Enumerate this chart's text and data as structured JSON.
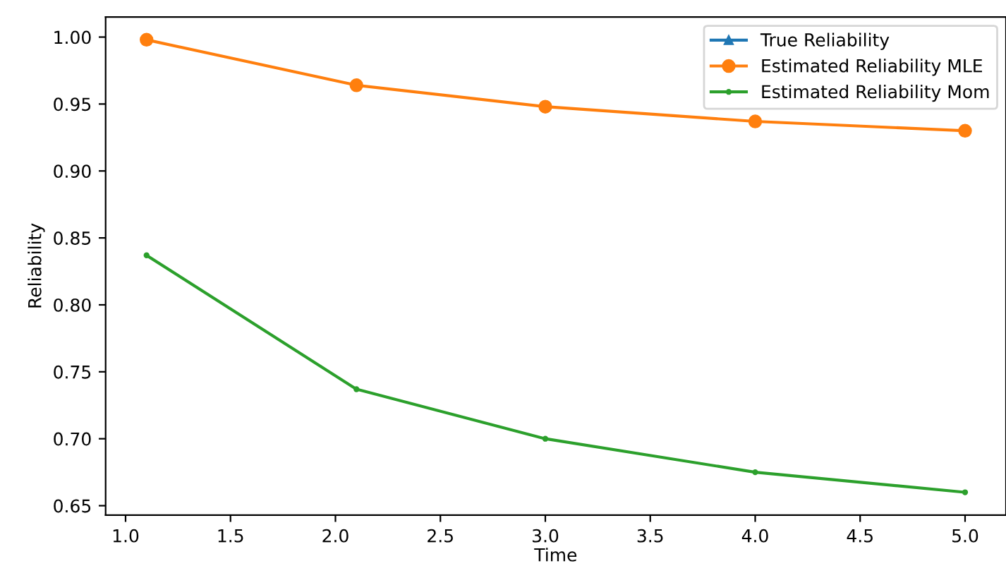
{
  "chart_data": {
    "type": "line",
    "xlabel": "Time",
    "ylabel": "Reliability",
    "x": [
      1.1,
      2.1,
      3.0,
      4.0,
      5.0
    ],
    "xlim": [
      0.905,
      5.195
    ],
    "xticks": [
      {
        "value": 1.0,
        "label": "1.0"
      },
      1.5,
      {
        "value": 2.0,
        "label": "2.0"
      },
      2.5,
      {
        "value": 3.0,
        "label": "3.0"
      },
      3.5,
      {
        "value": 4.0,
        "label": "4.0"
      },
      4.5,
      {
        "value": 5.0,
        "label": "5.0"
      }
    ],
    "ylim": [
      0.643,
      1.015
    ],
    "yticks": [
      0.65,
      {
        "value": 0.7,
        "label": "0.70"
      },
      0.75,
      {
        "value": 0.8,
        "label": "0.80"
      },
      0.85,
      {
        "value": 0.9,
        "label": "0.90"
      },
      0.95,
      {
        "value": 1.0,
        "label": "1.00"
      }
    ],
    "grid": false,
    "legend": "top right",
    "series": [
      {
        "name": "True Reliability",
        "color": "#1f77b4",
        "marker": "triangle",
        "values": [
          null,
          null,
          null,
          null,
          null
        ]
      },
      {
        "name": "Estimated Reliability MLE",
        "color": "#ff7f0e",
        "marker": "circle",
        "values": [
          0.998,
          0.964,
          0.948,
          0.937,
          0.93
        ]
      },
      {
        "name": "Estimated Reliability Mom",
        "color": "#2ca02c",
        "marker": "point",
        "values": [
          0.837,
          0.737,
          0.7,
          0.675,
          0.66
        ]
      }
    ]
  }
}
